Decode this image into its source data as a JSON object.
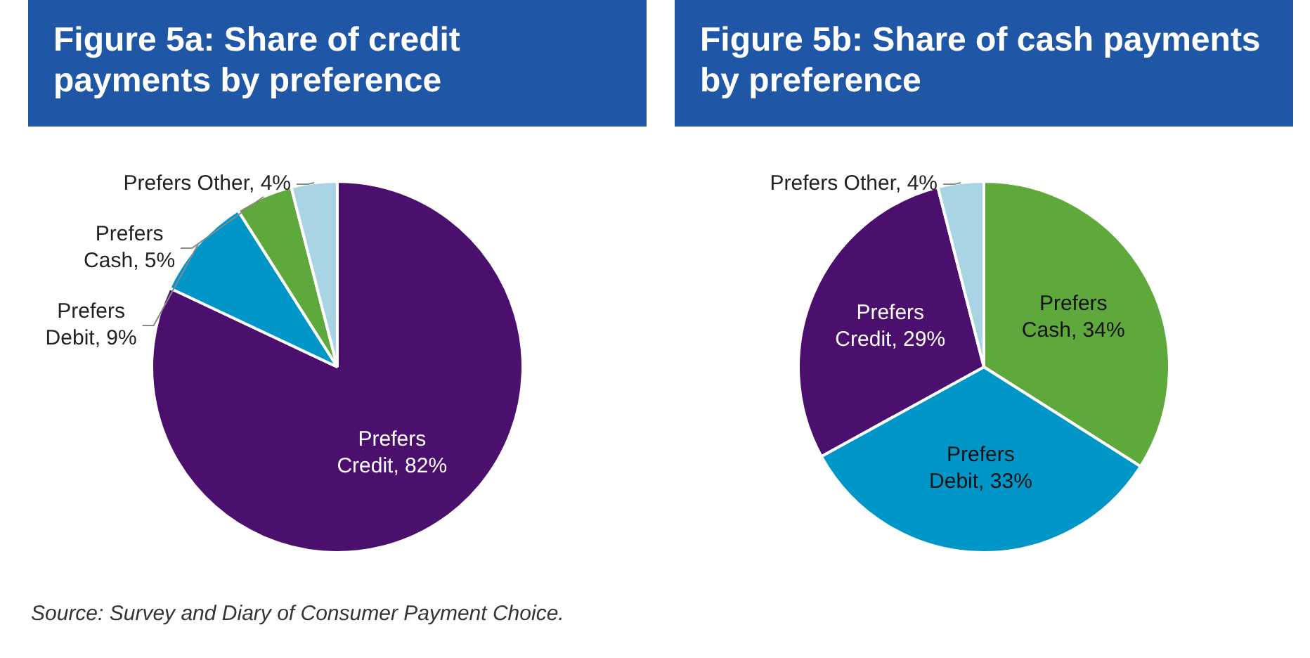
{
  "chart_data": [
    {
      "type": "pie",
      "title": "Figure 5a: Share of credit payments by preference",
      "categories": [
        "Prefers Credit",
        "Prefers Debit",
        "Prefers Cash",
        "Prefers Other"
      ],
      "values": [
        82,
        9,
        5,
        4
      ],
      "colors": [
        "#4b0f6e",
        "#0096c8",
        "#5fa83c",
        "#a9d4e3"
      ],
      "value_labels": [
        "82%",
        "9%",
        "5%",
        "4%"
      ],
      "legend": false
    },
    {
      "type": "pie",
      "title": "Figure 5b: Share of cash payments by preference",
      "categories": [
        "Prefers Cash",
        "Prefers Debit",
        "Prefers Credit",
        "Prefers Other"
      ],
      "values": [
        34,
        33,
        29,
        4
      ],
      "colors": [
        "#5fa83c",
        "#0096c8",
        "#4b0f6e",
        "#a9d4e3"
      ],
      "value_labels": [
        "34%",
        "33%",
        "29%",
        "4%"
      ],
      "legend": false,
      "annotations": [
        "Source: Survey and Diary of Consumer Payment Choice."
      ]
    }
  ]
}
